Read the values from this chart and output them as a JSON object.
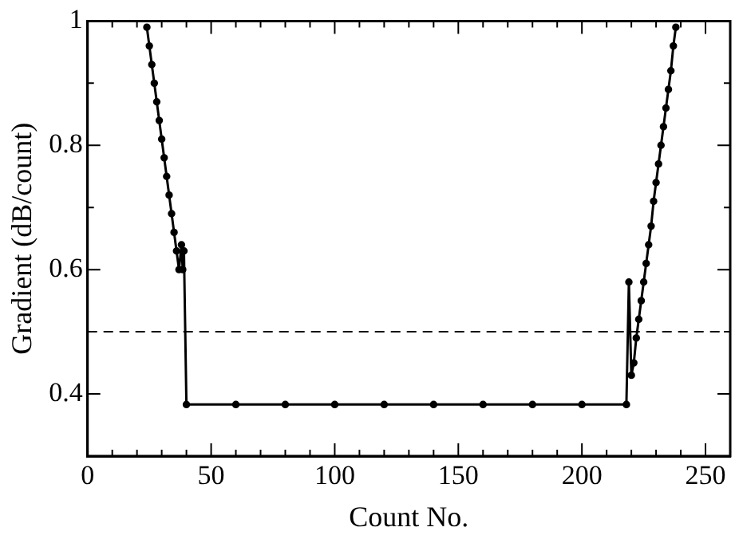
{
  "chart_data": {
    "type": "line",
    "xlabel": "Count No.",
    "ylabel": "Gradient (dB/count)",
    "x": [
      24,
      25,
      26,
      27,
      28,
      29,
      30,
      31,
      32,
      33,
      34,
      35,
      36,
      37,
      38,
      38.5,
      39,
      40,
      60,
      80,
      100,
      120,
      140,
      160,
      180,
      200,
      218,
      219,
      220,
      221,
      222,
      223,
      224,
      225,
      226,
      227,
      228,
      229,
      230,
      231,
      232,
      233,
      234,
      235,
      236,
      237,
      238
    ],
    "series": [
      {
        "color": "#000000",
        "values": [
          0.99,
          0.96,
          0.93,
          0.9,
          0.87,
          0.84,
          0.81,
          0.78,
          0.75,
          0.72,
          0.69,
          0.66,
          0.63,
          0.6,
          0.64,
          0.6,
          0.63,
          0.383,
          0.383,
          0.383,
          0.383,
          0.383,
          0.383,
          0.383,
          0.383,
          0.383,
          0.383,
          0.58,
          0.43,
          0.45,
          0.49,
          0.52,
          0.55,
          0.58,
          0.61,
          0.64,
          0.67,
          0.71,
          0.74,
          0.77,
          0.8,
          0.83,
          0.86,
          0.89,
          0.92,
          0.96,
          0.99
        ]
      }
    ],
    "xlim": [
      0,
      260
    ],
    "xticks": [
      0,
      {
        "value": 10,
        "label": null
      },
      {
        "value": 20,
        "label": null
      },
      {
        "value": 30,
        "label": null
      },
      {
        "value": 40,
        "label": null
      },
      50,
      {
        "value": 60,
        "label": null
      },
      {
        "value": 70,
        "label": null
      },
      {
        "value": 80,
        "label": null
      },
      {
        "value": 90,
        "label": null
      },
      100,
      {
        "value": 110,
        "label": null
      },
      {
        "value": 120,
        "label": null
      },
      {
        "value": 130,
        "label": null
      },
      {
        "value": 140,
        "label": null
      },
      150,
      {
        "value": 160,
        "label": null
      },
      {
        "value": 170,
        "label": null
      },
      {
        "value": 180,
        "label": null
      },
      {
        "value": 190,
        "label": null
      },
      200,
      {
        "value": 210,
        "label": null
      },
      {
        "value": 220,
        "label": null
      },
      {
        "value": 230,
        "label": null
      },
      {
        "value": 240,
        "label": null
      },
      250
    ],
    "ylim": [
      0.3,
      1
    ],
    "yticks": [
      {
        "value": 0.3,
        "label": null
      },
      0.4,
      {
        "value": 0.5,
        "label": null
      },
      0.6,
      {
        "value": 0.7,
        "label": null
      },
      0.8,
      {
        "value": 0.9,
        "label": null
      },
      1
    ],
    "ref_lines": [
      {
        "axis": "y",
        "value": 0.5,
        "line_style": "dashed",
        "color": "#000000"
      }
    ],
    "marker": "circle",
    "line_style": "solid",
    "grid": false,
    "legend": false
  }
}
